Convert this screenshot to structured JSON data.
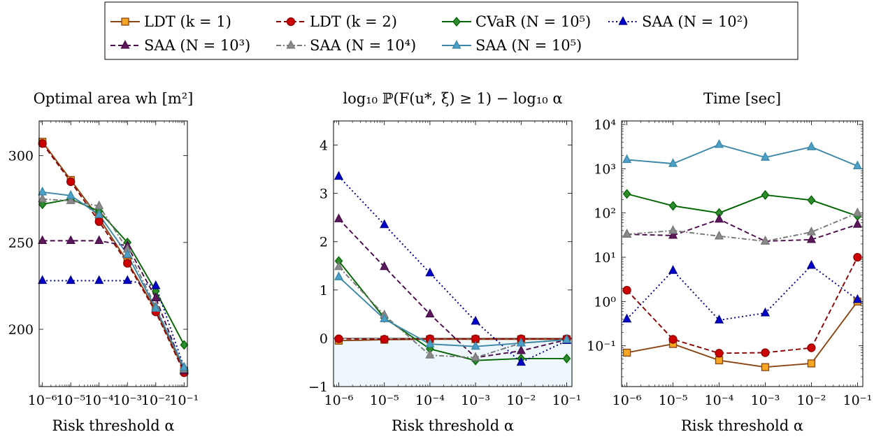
{
  "figure": {
    "xlabel": "Risk threshold α",
    "legend_columns": 4,
    "legend_placement": "top-center"
  },
  "series_styles": [
    {
      "key": "ldt1",
      "name": "LDT (k = 1)",
      "color": "#8b4513",
      "fill": "#f5a623",
      "marker": "square",
      "dash": "solid"
    },
    {
      "key": "ldt2",
      "name": "LDT (k = 2)",
      "color": "#8b0000",
      "fill": "#cc0000",
      "marker": "circle",
      "dash": "dashed"
    },
    {
      "key": "cvar5",
      "name": "CVaR (N = 10⁵)",
      "color": "#006400",
      "fill": "#2e8b2e",
      "marker": "diamond",
      "dash": "solid"
    },
    {
      "key": "saa2",
      "name": "SAA (N = 10²)",
      "color": "#00008b",
      "fill": "#0000cc",
      "marker": "triangle",
      "dash": "dotted"
    },
    {
      "key": "saa3",
      "name": "SAA (N = 10³)",
      "color": "#4b0a4b",
      "fill": "#5a1a5a",
      "marker": "triangle",
      "dash": "dashed"
    },
    {
      "key": "saa4",
      "name": "SAA (N = 10⁴)",
      "color": "#777777",
      "fill": "#8a8a8a",
      "marker": "triangle",
      "dash": "dashdot"
    },
    {
      "key": "saa5",
      "name": "SAA (N = 10⁵)",
      "color": "#3b87a8",
      "fill": "#4ca0c8",
      "marker": "triangle",
      "dash": "solid"
    }
  ],
  "chart_data": [
    {
      "type": "line",
      "title": "Optimal area wh [m²]",
      "xlabel": "Risk threshold α",
      "x": [
        1e-06,
        1e-05,
        0.0001,
        0.001,
        0.01,
        0.1
      ],
      "xscale": "log",
      "xticks": [
        "10⁻⁶",
        "10⁻⁵",
        "10⁻⁴",
        "10⁻³",
        "10⁻²",
        "10⁻¹"
      ],
      "yscale": "linear",
      "ylim": [
        167,
        320
      ],
      "yticks": [
        200,
        250,
        300
      ],
      "ytick_labels": [
        "200",
        "250",
        "300"
      ],
      "series": [
        {
          "name": "LDT (k = 1)",
          "values": [
            308,
            286,
            264,
            239,
            211,
            176
          ]
        },
        {
          "name": "LDT (k = 2)",
          "values": [
            307,
            285,
            262,
            238,
            210,
            175
          ]
        },
        {
          "name": "CVaR (N = 10⁵)",
          "values": [
            272,
            275,
            268,
            250,
            222,
            191
          ]
        },
        {
          "name": "SAA (N = 10²)",
          "values": [
            228,
            228,
            228,
            228,
            225,
            178
          ]
        },
        {
          "name": "SAA (N = 10³)",
          "values": [
            251,
            251,
            251,
            248,
            218,
            176
          ]
        },
        {
          "name": "SAA (N = 10⁴)",
          "values": [
            275,
            274,
            271,
            246,
            213,
            177
          ]
        },
        {
          "name": "SAA (N = 10⁵)",
          "values": [
            279,
            277,
            266,
            243,
            212,
            178
          ]
        }
      ]
    },
    {
      "type": "line",
      "title": "log₁₀ ℙ(F(u*, ξ) ≥ 1) − log₁₀ α",
      "xlabel": "Risk threshold α",
      "x": [
        1e-06,
        1e-05,
        0.0001,
        0.001,
        0.01,
        0.1
      ],
      "xscale": "log",
      "xticks": [
        "10⁻⁶",
        "10⁻⁵",
        "10⁻⁴",
        "10⁻³",
        "10⁻²",
        "10⁻¹"
      ],
      "yscale": "linear",
      "ylim": [
        -1,
        4.5
      ],
      "yticks": [
        -1,
        0,
        1,
        2,
        3,
        4
      ],
      "ytick_labels": [
        "−1",
        "0",
        "1",
        "2",
        "3",
        "4"
      ],
      "shaded_region": [
        -1,
        0
      ],
      "series": [
        {
          "name": "LDT (k = 1)",
          "values": [
            -0.05,
            -0.03,
            -0.02,
            -0.02,
            -0.02,
            -0.02
          ]
        },
        {
          "name": "LDT (k = 2)",
          "values": [
            -0.01,
            -0.02,
            -0.01,
            -0.01,
            -0.01,
            -0.01
          ]
        },
        {
          "name": "CVaR (N = 10⁵)",
          "values": [
            1.6,
            0.42,
            -0.22,
            -0.46,
            -0.42,
            -0.42
          ]
        },
        {
          "name": "SAA (N = 10²)",
          "values": [
            3.35,
            2.35,
            1.35,
            0.35,
            -0.5,
            -0.05
          ]
        },
        {
          "name": "SAA (N = 10³)",
          "values": [
            2.47,
            1.48,
            0.5,
            -0.4,
            -0.26,
            -0.03
          ]
        },
        {
          "name": "SAA (N = 10⁴)",
          "values": [
            1.48,
            0.48,
            -0.35,
            -0.4,
            -0.1,
            -0.03
          ]
        },
        {
          "name": "SAA (N = 10⁵)",
          "values": [
            1.27,
            0.4,
            -0.12,
            -0.17,
            -0.1,
            -0.03
          ]
        }
      ]
    },
    {
      "type": "line",
      "title": "Time [sec]",
      "xlabel": "Risk threshold α",
      "x": [
        1e-06,
        1e-05,
        0.0001,
        0.001,
        0.01,
        0.1
      ],
      "xscale": "log",
      "xticks": [
        "10⁻⁶",
        "10⁻⁵",
        "10⁻⁴",
        "10⁻³",
        "10⁻²",
        "10⁻¹"
      ],
      "yscale": "log",
      "ylim": [
        0.012,
        12000
      ],
      "yticks": [
        0.1,
        1,
        10,
        100,
        1000,
        10000
      ],
      "ytick_labels": [
        "10⁻¹",
        "10⁰",
        "10¹",
        "10²",
        "10³",
        "10⁴"
      ],
      "series": [
        {
          "name": "LDT (k = 1)",
          "values": [
            0.07,
            0.11,
            0.047,
            0.033,
            0.04,
            1.0
          ]
        },
        {
          "name": "LDT (k = 2)",
          "values": [
            1.8,
            0.14,
            0.068,
            0.07,
            0.09,
            10
          ]
        },
        {
          "name": "CVaR (N = 10⁵)",
          "values": [
            270,
            145,
            100,
            255,
            195,
            85
          ]
        },
        {
          "name": "SAA (N = 10²)",
          "values": [
            0.4,
            5,
            0.38,
            0.55,
            6.5,
            1.1
          ]
        },
        {
          "name": "SAA (N = 10³)",
          "values": [
            33,
            31,
            72,
            23,
            25,
            55
          ]
        },
        {
          "name": "SAA (N = 10⁴)",
          "values": [
            33,
            40,
            30,
            23,
            37,
            100
          ]
        },
        {
          "name": "SAA (N = 10⁵)",
          "values": [
            1600,
            1300,
            3500,
            1800,
            3100,
            1150
          ]
        }
      ]
    }
  ]
}
